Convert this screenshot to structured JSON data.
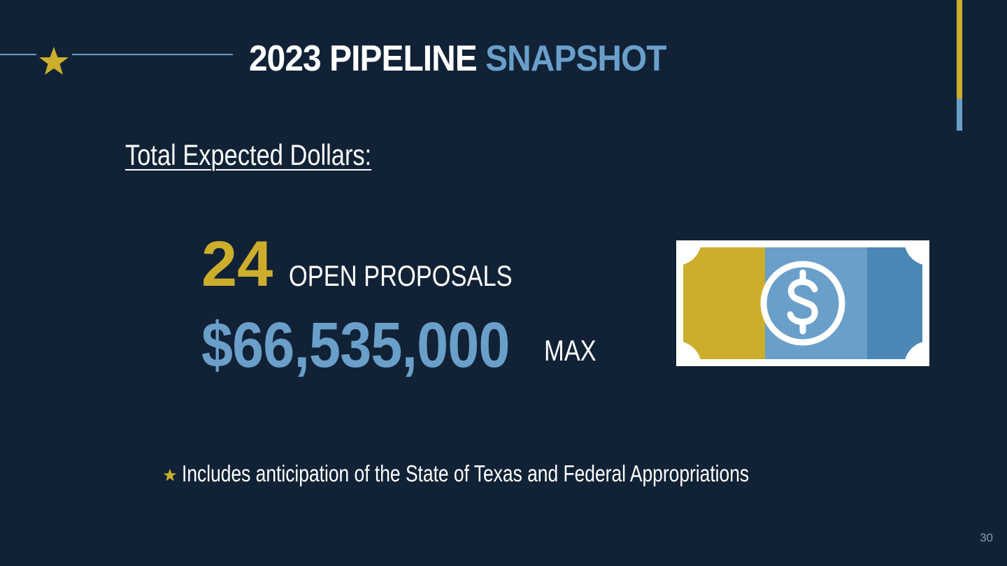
{
  "slide": {
    "title_main": "2023 PIPELINE",
    "title_accent": "SNAPSHOT",
    "subtitle": "Total Expected Dollars:",
    "proposals_count": "24",
    "proposals_label": "OPEN PROPOSALS",
    "amount": "$66,535,000",
    "amount_label": "MAX",
    "note": "Includes anticipation of the State of Texas and Federal Appropriations",
    "page_number": "30"
  },
  "icons": {
    "header": "star-icon",
    "bullet": "star-icon",
    "money": "dollar-bill-icon"
  },
  "colors": {
    "background": "#112236",
    "gold": "#cdae2c",
    "blue": "#6a9fca",
    "white": "#ffffff"
  }
}
